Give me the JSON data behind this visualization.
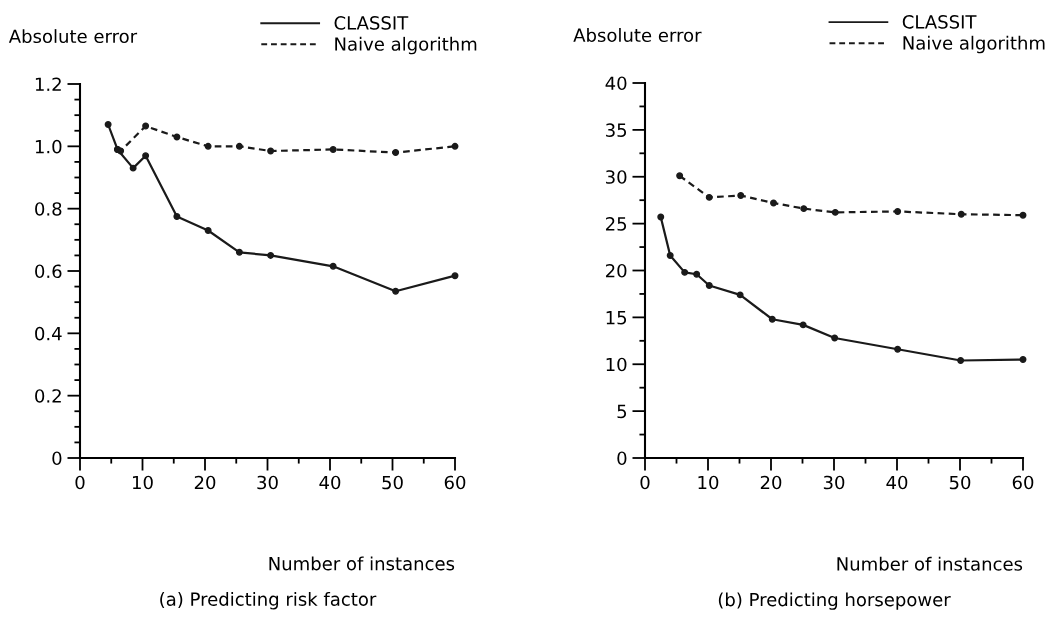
{
  "chart_data": [
    {
      "type": "line",
      "title": "(a) Predicting risk factor",
      "xlabel": "Number of instances",
      "ylabel": "Absolute error",
      "legend": "top right",
      "marker": "circle",
      "grid": false,
      "xlim": [
        0,
        60
      ],
      "xticks": [
        0,
        {
          "value": 5,
          "label": null
        },
        10,
        {
          "value": 15,
          "label": null
        },
        20,
        {
          "value": 25,
          "label": null
        },
        30,
        {
          "value": 35,
          "label": null
        },
        40,
        {
          "value": 45,
          "label": null
        },
        50,
        {
          "value": 55,
          "label": null
        },
        60
      ],
      "ylim": [
        0,
        1.2
      ],
      "yticks": [
        0,
        {
          "value": 0.05,
          "label": null
        },
        {
          "value": 0.1,
          "label": null
        },
        {
          "value": 0.15,
          "label": null
        },
        0.2,
        {
          "value": 0.25,
          "label": null
        },
        {
          "value": 0.3,
          "label": null
        },
        {
          "value": 0.35,
          "label": null
        },
        0.4,
        {
          "value": 0.45,
          "label": null
        },
        {
          "value": 0.5,
          "label": null
        },
        {
          "value": 0.55,
          "label": null
        },
        0.6,
        {
          "value": 0.65,
          "label": null
        },
        {
          "value": 0.7,
          "label": null
        },
        {
          "value": 0.75,
          "label": null
        },
        0.8,
        {
          "value": 0.85,
          "label": null
        },
        {
          "value": 0.9,
          "label": null
        },
        {
          "value": 0.95,
          "label": null
        },
        {
          "value": 1.0,
          "label": "1.0"
        },
        {
          "value": 1.05,
          "label": null
        },
        {
          "value": 1.1,
          "label": null
        },
        {
          "value": 1.15,
          "label": null
        },
        1.2
      ],
      "series": [
        {
          "name": "CLASSIT",
          "color": "#1a1a1a",
          "line_style": "solid",
          "x": [
            4.5,
            6,
            8.5,
            10.5,
            15.5,
            20.5,
            25.5,
            30.5,
            40.5,
            50.5,
            60
          ],
          "values": [
            1.07,
            0.99,
            0.93,
            0.97,
            0.775,
            0.73,
            0.66,
            0.65,
            0.615,
            0.535,
            0.585
          ]
        },
        {
          "name": "Naive algorithm",
          "color": "#1a1a1a",
          "line_style": "dashed",
          "x": [
            6,
            6.5,
            10.5,
            15.5,
            20.5,
            25.5,
            30.5,
            40.5,
            50.5,
            60
          ],
          "values": [
            0.99,
            0.985,
            1.065,
            1.03,
            1.0,
            1.0,
            0.985,
            0.99,
            0.98,
            1.0
          ]
        }
      ]
    },
    {
      "type": "line",
      "title": "(b) Predicting horsepower",
      "xlabel": "Number of instances",
      "ylabel": "Absolute error",
      "legend": "top right",
      "marker": "circle",
      "grid": false,
      "xlim": [
        0,
        60
      ],
      "xticks": [
        0,
        {
          "value": 5,
          "label": null
        },
        10,
        {
          "value": 15,
          "label": null
        },
        20,
        {
          "value": 25,
          "label": null
        },
        30,
        {
          "value": 35,
          "label": null
        },
        40,
        {
          "value": 45,
          "label": null
        },
        50,
        {
          "value": 55,
          "label": null
        },
        60
      ],
      "ylim": [
        0,
        40
      ],
      "yticks": [
        0,
        {
          "value": 2.5,
          "label": null
        },
        5,
        {
          "value": 7.5,
          "label": null
        },
        10,
        {
          "value": 12.5,
          "label": null
        },
        15,
        {
          "value": 17.5,
          "label": null
        },
        20,
        {
          "value": 22.5,
          "label": null
        },
        25,
        {
          "value": 27.5,
          "label": null
        },
        30,
        {
          "value": 32.5,
          "label": null
        },
        35,
        {
          "value": 37.5,
          "label": null
        },
        40
      ],
      "series": [
        {
          "name": "CLASSIT",
          "color": "#1a1a1a",
          "line_style": "solid",
          "x": [
            2.5,
            4,
            6.3,
            8.2,
            10.2,
            15.1,
            20.2,
            25.1,
            30.1,
            40.1,
            50.1,
            60
          ],
          "values": [
            25.7,
            21.6,
            19.8,
            19.6,
            18.4,
            17.4,
            14.8,
            14.2,
            12.8,
            11.6,
            10.4,
            10.5
          ]
        },
        {
          "name": "Naive algorithm",
          "color": "#1a1a1a",
          "line_style": "dashed",
          "x": [
            5.5,
            10.2,
            15.2,
            20.4,
            25.2,
            30.2,
            40.1,
            50.2,
            60
          ],
          "values": [
            30.1,
            27.8,
            28.0,
            27.2,
            26.6,
            26.2,
            26.3,
            26.0,
            25.9
          ]
        }
      ]
    }
  ]
}
